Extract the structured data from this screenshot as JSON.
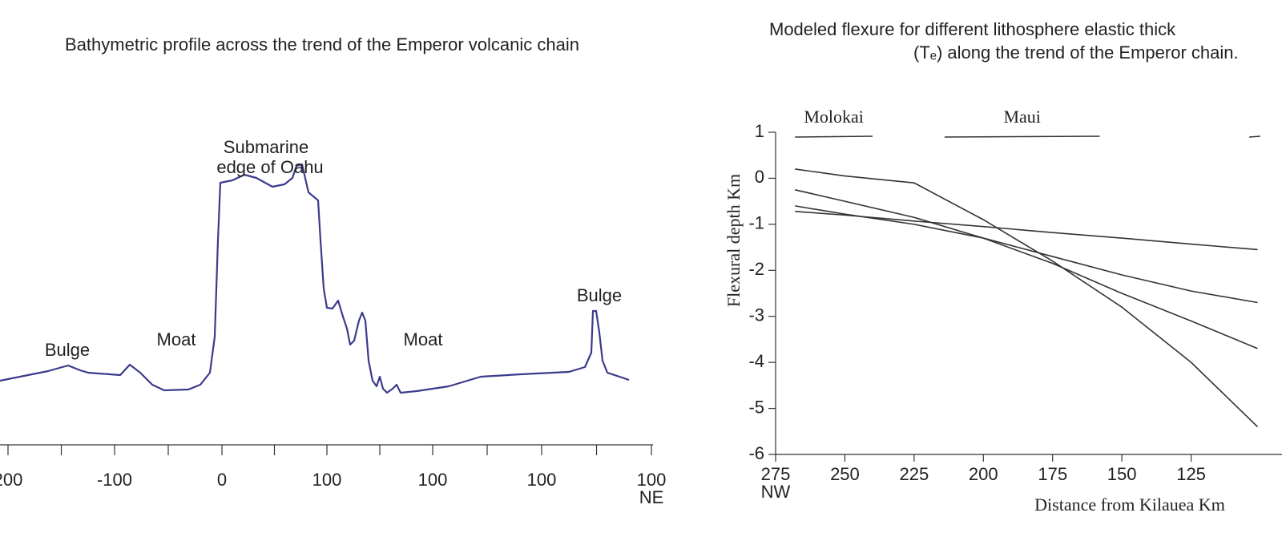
{
  "profile": {
    "title": "Bathymetric profile across the trend of the Emperor volcanic chain",
    "annotations": [
      "Bulge",
      "Moat",
      "Submarine",
      "edge of Oahu",
      "Moat",
      "Bulge"
    ],
    "xtick_labels": [
      "200",
      "-100",
      "0",
      "100",
      "100",
      "100",
      "100"
    ],
    "x_end_label": "NE"
  },
  "chart_data": {
    "type": "line",
    "title": "Modeled flexure for different lithosphere elastic thick",
    "subtitle": "(Tₑ) along the trend of the Emperor chain.",
    "xlabel": "Distance from Kilauea Km",
    "ylabel": "Flexural depth Km",
    "x_start_label": "NW",
    "x": [
      268,
      250,
      225,
      200,
      175,
      150,
      125,
      101
    ],
    "series": [
      {
        "color": "#333333",
        "values": [
          0.2,
          0.05,
          -0.1,
          -0.9,
          -1.8,
          -2.8,
          -4.0,
          -5.4
        ]
      },
      {
        "color": "#333333",
        "values": [
          -0.25,
          -0.5,
          -0.85,
          -1.3,
          -1.85,
          -2.5,
          -3.1,
          -3.7
        ]
      },
      {
        "color": "#333333",
        "values": [
          -0.6,
          -0.78,
          -1.0,
          -1.3,
          -1.7,
          -2.1,
          -2.45,
          -2.7
        ]
      },
      {
        "color": "#333333",
        "values": [
          -0.72,
          -0.8,
          -0.93,
          -1.05,
          -1.18,
          -1.3,
          -1.43,
          -1.55
        ]
      }
    ],
    "islands": [
      {
        "label": "Molokai",
        "range": [
          268,
          240
        ]
      },
      {
        "label": "Maui",
        "range": [
          214,
          158
        ]
      },
      {
        "label": null,
        "range": [
          104,
          100
        ]
      }
    ],
    "xlim": [
      275,
      100
    ],
    "xticks": [
      275,
      250,
      225,
      200,
      175,
      150,
      125
    ],
    "ylim": [
      -6,
      1
    ],
    "yticks": [
      -6,
      -5,
      -4,
      -3,
      -2,
      -1,
      0,
      1
    ]
  }
}
